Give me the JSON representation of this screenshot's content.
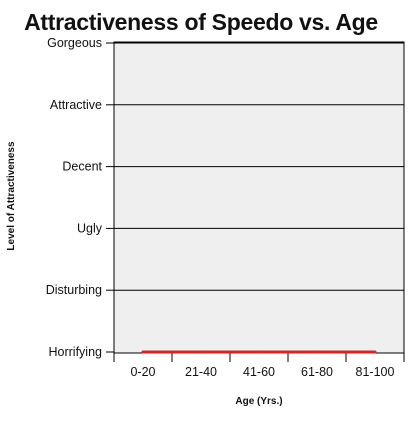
{
  "chart_data": {
    "type": "line",
    "title": "Attractiveness of Speedo vs. Age",
    "xlabel": "Age (Yrs.)",
    "ylabel": "Level of Attractiveness",
    "categories": [
      "0-20",
      "21-40",
      "41-60",
      "61-80",
      "81-100"
    ],
    "y_levels": [
      "Horrifying",
      "Disturbing",
      "Ugly",
      "Decent",
      "Attractive",
      "Gorgeous"
    ],
    "series": [
      {
        "color": "#e02020",
        "values": [
          "Horrifying",
          "Horrifying",
          "Horrifying",
          "Horrifying",
          "Horrifying"
        ]
      }
    ],
    "grid": true,
    "plot_background": "#efefef"
  }
}
